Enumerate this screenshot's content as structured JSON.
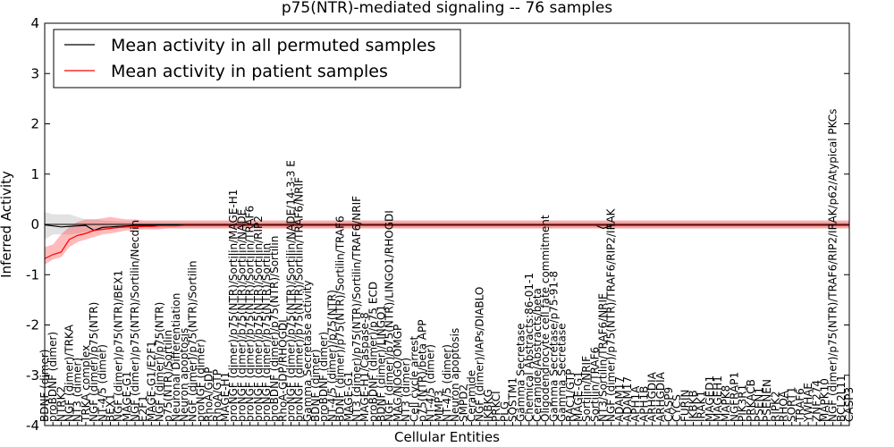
{
  "chart_data": {
    "type": "line",
    "title": "p75(NTR)-mediated signaling -- 76 samples",
    "xlabel": "Cellular Entities",
    "ylabel": "Inferred Activity",
    "ylim": [
      -4,
      4
    ],
    "yticks": [
      -4,
      -3,
      -2,
      -1,
      0,
      1,
      2,
      3,
      4
    ],
    "legend_position": "upper-left",
    "categories": [
      "BDNF (dimer)",
      "proBDNF (dimer)",
      "NTRK2",
      "NGF (dimer)/TRKA",
      "NT3 (dimer)",
      "TRKA complex",
      "NGF (dimer)/p75(NTR)",
      "NT-4/5 (dimer)",
      "BEX1",
      "NGF (dimer)/p75(NTR)/BEX1",
      "MAGE-G1",
      "NGF (dimer)/p75(NTR)/Sortilin/Necdin",
      "E2F1",
      "MAGE-G1/E2F1",
      "NGF (dimer)/p75(NTR)",
      "p75(NTR)/Sortilin",
      "Neuronal Differentiation",
      "Neuron apoptosis",
      "NGF (dimer)/p75(NTR)/Sortilin",
      "proNGF (dimer)",
      "RhoA/GDP",
      "RhoA/GTP",
      "MAGE-H1",
      "proNGF (dimer)/p75(NTR)/Sortilin/MAGE-H1",
      "proNGF (dimer)/p75(NTR)/Sortilin/NADE",
      "proNGF (dimer)/p75(NTR)/Sortilin/TRAF6",
      "proNGF (dimer)/p75(NTR)/Sortilin/RIP2",
      "proNGF (dimer)/p75(NTR)/Sortilin",
      "proBDNF (dimer)/p75(NTR)/Sortilin",
      "RhoA-GDP/RHOGDI",
      "proNGF (dimer)/p75(NTR)/Sortilin/NADE/14-3-3 E",
      "proNGF (dimer)/p75(NTR)/Sortilin/TRAF6/NRIF",
      "Gamma Secretase activity",
      "BDNF (dimer)",
      "proBDNF (dimer)",
      "NT-4/5 (dimer)/p75(NTR)",
      "BDNF (dimer)/p75(NTR)/Sortilin/TRAF6",
      "MAGE-G1",
      "NT3 (dimer)/p75(NTR)/Sortilin/TRAF6/NRIF",
      "MAGE-H1/Caspase-8",
      "proBDNF (dimer)/p75 ECD",
      "BDNF (dimer)/LINGO1",
      "NGF (dimer)/p75(NTR)/LINGO1/RHOGDI",
      "MAG/NOGO/OMGP",
      "NT3 (dimer)",
      "Cell cycle arrest",
      "p75(NTR)/beta APP",
      "NT-4/5 (dimer)",
      "MMP3",
      "NT-4/5 (dimer)",
      "Neuron apoptosis",
      "SMPD2",
      "Ceramide",
      "NGF (dimer)/IAPs/DIABLO",
      "IKBKG",
      "PRKCI",
      "PLG",
      "SQSTM1",
      "Gamma Secretase",
      "Chemical Abstracts:86-01-1",
      "Ceramide/Abstracts/beta",
      "Oligodendrocyte cell fate commitment",
      "Gamma Secretase/p75-91-8",
      "Gamma Secretase",
      "RAC1/GTP",
      "MAGE-G1",
      "Sortilin/NRIF",
      "Sortilin/TRAF6",
      "NT3/Sortilin/TRAF6/NRIF",
      "NGF (dimer)/p75(NTR)/TRAF6/RIP2/IRAK",
      "ADAM17",
      "ADAM17",
      "APH1A",
      "APH1B",
      "ARHGDIA",
      "ARHGDIA",
      "CASP9",
      "CYCS",
      "FURIN",
      "IKBKB",
      "IRAK1",
      "MAGED1",
      "MAGEH1",
      "MAPK8",
      "NGFRAP1",
      "PIK3R1",
      "PRKACB",
      "PSEN1",
      "PSENEN",
      "RIPK2",
      "RHOA",
      "SORT1",
      "TRAF6",
      "YWHAE",
      "ZNF274",
      "MAPK10",
      "NGF (dimer)/p75(NTR)/TRAF6/RIP2/IRAK/p62/Atypical PKCs",
      "BCL2L11",
      "CASP3"
    ],
    "series": [
      {
        "name": "Mean activity in all permuted samples",
        "color": "#000000",
        "values": [
          -0.01,
          -0.03,
          -0.05,
          -0.04,
          -0.03,
          -0.02,
          -0.12,
          -0.06,
          -0.05,
          -0.04,
          -0.03,
          -0.02,
          -0.02,
          -0.02,
          -0.01,
          -0.01,
          -0.01,
          -0.01,
          -0.01,
          -0.01,
          -0.01,
          -0.01,
          -0.01,
          -0.01,
          -0.01,
          -0.01,
          -0.01,
          -0.01,
          -0.01,
          -0.01,
          -0.01,
          -0.01,
          -0.01,
          -0.01,
          -0.01,
          -0.01,
          -0.01,
          -0.01,
          -0.01,
          -0.01,
          -0.01,
          -0.01,
          -0.01,
          -0.01,
          -0.01,
          -0.01,
          -0.01,
          -0.01,
          -0.01,
          -0.01,
          -0.01,
          -0.01,
          -0.01,
          -0.01,
          -0.01,
          -0.01,
          -0.01,
          -0.01,
          -0.01,
          -0.01,
          -0.01,
          -0.01,
          -0.01,
          -0.01,
          -0.01,
          -0.01,
          -0.01,
          -0.01,
          -0.08,
          -0.03,
          -0.01,
          -0.01,
          -0.01,
          -0.01,
          -0.01,
          -0.01,
          -0.01,
          -0.01,
          -0.01,
          -0.01,
          -0.01,
          -0.01,
          -0.01,
          -0.01,
          -0.01,
          -0.01,
          -0.01,
          -0.01,
          -0.01,
          -0.01,
          -0.01,
          -0.01,
          -0.01,
          -0.01,
          -0.01,
          -0.01,
          -0.01,
          -0.01,
          -0.01
        ],
        "band_low": [
          -0.3,
          -0.2,
          -0.2,
          -0.2,
          -0.18,
          -0.15,
          -0.12,
          -0.1,
          -0.08,
          -0.08,
          -0.08,
          -0.08,
          -0.08,
          -0.08,
          -0.08,
          -0.08,
          -0.08,
          -0.08,
          -0.08,
          -0.08,
          -0.08,
          -0.08,
          -0.08,
          -0.08,
          -0.08,
          -0.08,
          -0.08,
          -0.08,
          -0.08,
          -0.08,
          -0.08,
          -0.08,
          -0.08,
          -0.08,
          -0.08,
          -0.08,
          -0.08,
          -0.08,
          -0.08,
          -0.08,
          -0.08,
          -0.08,
          -0.08,
          -0.08,
          -0.08,
          -0.08,
          -0.08,
          -0.08,
          -0.08,
          -0.08,
          -0.08,
          -0.08,
          -0.08,
          -0.08,
          -0.08,
          -0.08,
          -0.08,
          -0.08,
          -0.08,
          -0.08,
          -0.08,
          -0.08,
          -0.08,
          -0.08,
          -0.08,
          -0.08,
          -0.08,
          -0.08,
          -0.08,
          -0.08,
          -0.08,
          -0.08,
          -0.08,
          -0.08,
          -0.08,
          -0.08,
          -0.08,
          -0.08,
          -0.08,
          -0.08,
          -0.08,
          -0.08,
          -0.08,
          -0.08,
          -0.08,
          -0.08,
          -0.08,
          -0.08,
          -0.08,
          -0.08,
          -0.08,
          -0.08,
          -0.08,
          -0.08,
          -0.08,
          -0.08,
          -0.08,
          -0.08,
          -0.08
        ],
        "band_high": [
          0.25,
          0.2,
          0.2,
          0.2,
          0.15,
          0.1,
          0.1,
          0.08,
          0.07,
          0.06,
          0.06,
          0.06,
          0.06,
          0.06,
          0.06,
          0.06,
          0.06,
          0.06,
          0.06,
          0.06,
          0.06,
          0.06,
          0.06,
          0.06,
          0.06,
          0.06,
          0.06,
          0.06,
          0.06,
          0.06,
          0.06,
          0.06,
          0.06,
          0.06,
          0.06,
          0.06,
          0.06,
          0.06,
          0.06,
          0.06,
          0.06,
          0.06,
          0.06,
          0.06,
          0.06,
          0.06,
          0.06,
          0.06,
          0.06,
          0.06,
          0.06,
          0.06,
          0.06,
          0.06,
          0.06,
          0.06,
          0.06,
          0.06,
          0.06,
          0.06,
          0.06,
          0.06,
          0.06,
          0.06,
          0.06,
          0.06,
          0.06,
          0.06,
          0.06,
          0.06,
          0.06,
          0.06,
          0.06,
          0.06,
          0.06,
          0.06,
          0.06,
          0.06,
          0.06,
          0.06,
          0.06,
          0.06,
          0.06,
          0.06,
          0.06,
          0.06,
          0.06,
          0.06,
          0.06,
          0.06,
          0.06,
          0.06,
          0.06,
          0.06,
          0.06,
          0.06,
          0.06,
          0.06,
          0.06
        ]
      },
      {
        "name": "Mean activity in patient samples",
        "color": "#ff0000",
        "values": [
          -0.68,
          -0.6,
          -0.55,
          -0.3,
          -0.22,
          -0.18,
          -0.12,
          -0.1,
          -0.08,
          -0.06,
          -0.05,
          -0.05,
          -0.04,
          -0.04,
          -0.03,
          -0.03,
          -0.03,
          -0.02,
          -0.02,
          -0.02,
          -0.02,
          -0.02,
          -0.02,
          -0.02,
          -0.02,
          -0.02,
          -0.02,
          -0.02,
          -0.02,
          -0.02,
          -0.02,
          -0.02,
          -0.02,
          -0.02,
          -0.02,
          -0.02,
          -0.02,
          -0.02,
          -0.02,
          -0.02,
          -0.02,
          -0.02,
          -0.02,
          -0.02,
          -0.02,
          -0.02,
          -0.02,
          -0.02,
          -0.02,
          -0.02,
          -0.02,
          -0.02,
          -0.02,
          -0.02,
          -0.02,
          -0.02,
          -0.02,
          -0.02,
          -0.02,
          -0.02,
          -0.02,
          -0.02,
          -0.02,
          -0.02,
          -0.02,
          -0.02,
          -0.02,
          -0.02,
          -0.02,
          -0.02,
          -0.02,
          -0.02,
          -0.02,
          -0.02,
          -0.02,
          -0.02,
          -0.02,
          -0.02,
          -0.02,
          -0.02,
          -0.02,
          -0.02,
          -0.02,
          -0.02,
          -0.02,
          -0.02,
          -0.02,
          -0.02,
          -0.02,
          -0.02,
          -0.02,
          -0.02,
          -0.02,
          -0.02,
          -0.02,
          -0.02,
          -0.02,
          -0.02,
          -0.02
        ],
        "band_low": [
          -0.8,
          -0.7,
          -0.65,
          -0.45,
          -0.35,
          -0.3,
          -0.25,
          -0.2,
          -0.18,
          -0.15,
          -0.12,
          -0.12,
          -0.1,
          -0.1,
          -0.1,
          -0.08,
          -0.08,
          -0.08,
          -0.08,
          -0.08,
          -0.08,
          -0.08,
          -0.08,
          -0.08,
          -0.08,
          -0.08,
          -0.08,
          -0.08,
          -0.08,
          -0.08,
          -0.08,
          -0.08,
          -0.08,
          -0.08,
          -0.08,
          -0.08,
          -0.08,
          -0.08,
          -0.08,
          -0.08,
          -0.08,
          -0.08,
          -0.08,
          -0.08,
          -0.08,
          -0.08,
          -0.08,
          -0.08,
          -0.08,
          -0.08,
          -0.08,
          -0.08,
          -0.08,
          -0.08,
          -0.08,
          -0.08,
          -0.08,
          -0.08,
          -0.08,
          -0.08,
          -0.08,
          -0.08,
          -0.08,
          -0.08,
          -0.08,
          -0.08,
          -0.08,
          -0.08,
          -0.08,
          -0.08,
          -0.08,
          -0.08,
          -0.08,
          -0.08,
          -0.08,
          -0.08,
          -0.08,
          -0.08,
          -0.08,
          -0.08,
          -0.08,
          -0.08,
          -0.08,
          -0.08,
          -0.08,
          -0.08,
          -0.08,
          -0.08,
          -0.08,
          -0.08,
          -0.08,
          -0.08,
          -0.08,
          -0.08,
          -0.08,
          -0.08,
          -0.08,
          -0.08,
          -0.08
        ],
        "band_high": [
          -0.45,
          -0.4,
          -0.2,
          -0.05,
          0.05,
          0.1,
          0.1,
          0.12,
          0.15,
          0.12,
          0.1,
          0.1,
          0.08,
          0.08,
          0.08,
          0.08,
          0.08,
          0.08,
          0.08,
          0.08,
          0.08,
          0.08,
          0.08,
          0.08,
          0.08,
          0.08,
          0.08,
          0.08,
          0.08,
          0.08,
          0.08,
          0.08,
          0.08,
          0.08,
          0.08,
          0.08,
          0.08,
          0.08,
          0.08,
          0.08,
          0.08,
          0.08,
          0.08,
          0.08,
          0.08,
          0.08,
          0.08,
          0.08,
          0.08,
          0.08,
          0.08,
          0.08,
          0.08,
          0.08,
          0.08,
          0.08,
          0.08,
          0.08,
          0.08,
          0.08,
          0.08,
          0.08,
          0.08,
          0.08,
          0.08,
          0.08,
          0.08,
          0.08,
          0.08,
          0.08,
          0.08,
          0.08,
          0.08,
          0.08,
          0.08,
          0.08,
          0.08,
          0.08,
          0.08,
          0.08,
          0.08,
          0.08,
          0.08,
          0.08,
          0.08,
          0.08,
          0.08,
          0.08,
          0.08,
          0.08,
          0.08,
          0.08,
          0.08,
          0.08,
          0.08,
          0.08,
          0.08,
          0.08,
          0.08
        ]
      }
    ]
  }
}
